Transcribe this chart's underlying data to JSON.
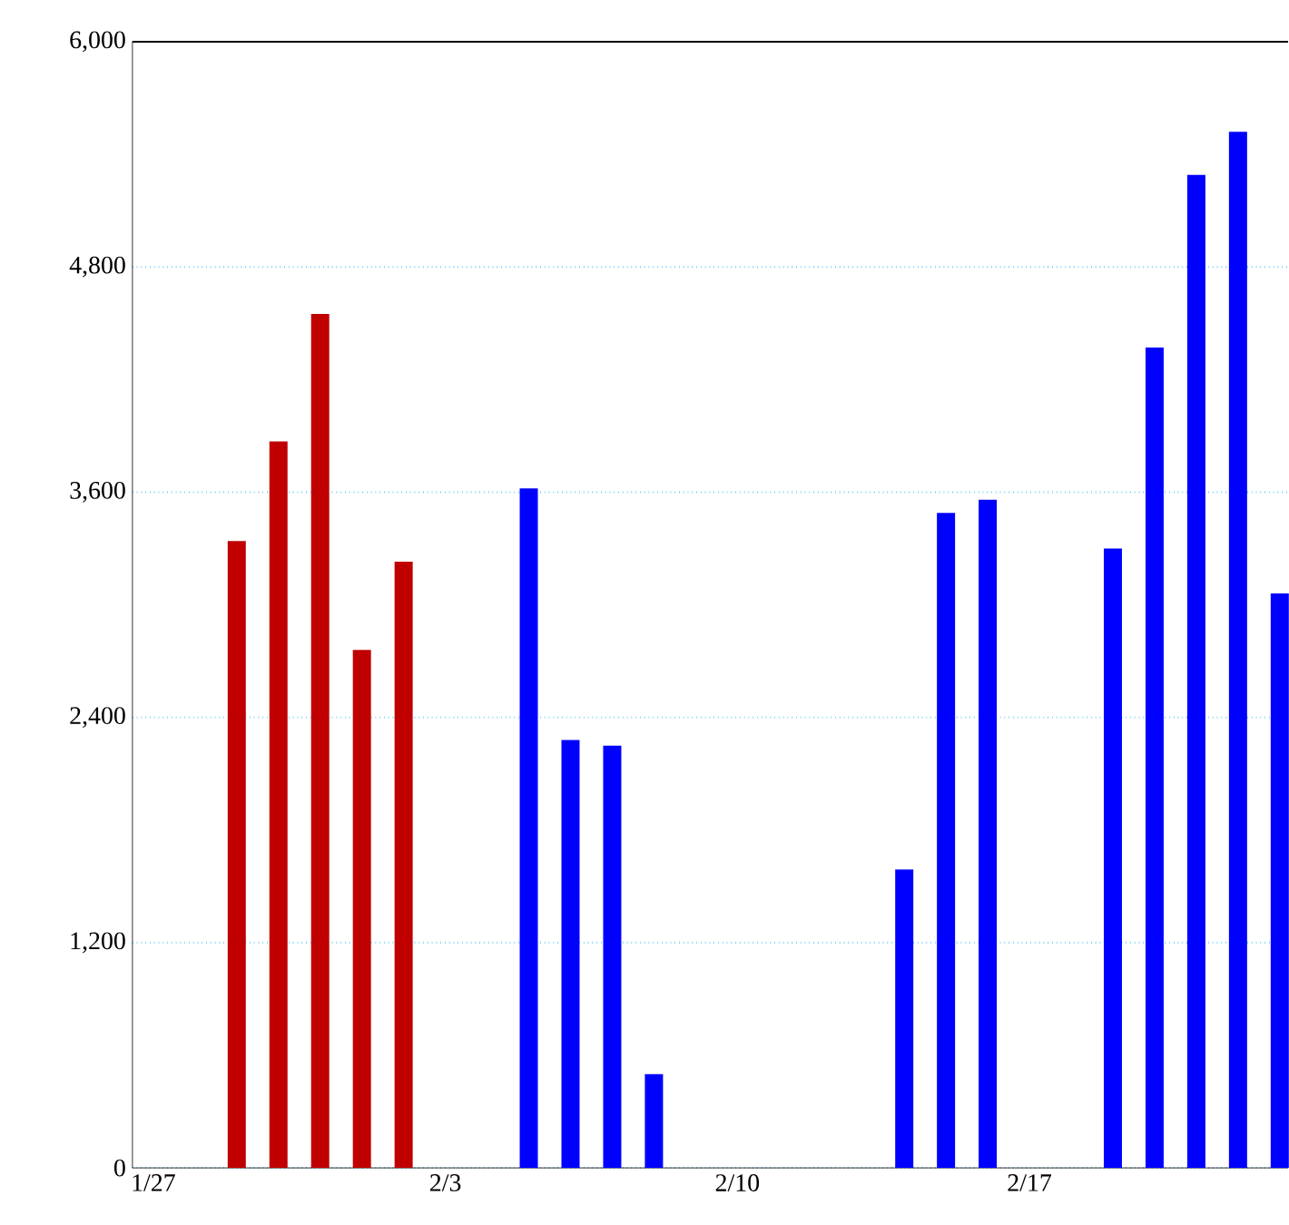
{
  "chart_data": {
    "type": "bar",
    "categories": [
      "1/27",
      null,
      null,
      null,
      null,
      null,
      null,
      "2/3",
      null,
      null,
      null,
      null,
      null,
      null,
      "2/10",
      null,
      null,
      null,
      null,
      null,
      null,
      "2/17",
      null,
      null,
      null,
      null,
      null,
      null
    ],
    "values": [
      null,
      null,
      3340,
      3870,
      4550,
      2760,
      3230,
      null,
      null,
      3620,
      2280,
      2250,
      500,
      null,
      null,
      null,
      null,
      null,
      1590,
      3490,
      3560,
      null,
      null,
      3300,
      4370,
      5290,
      5520,
      3060
    ],
    "colors": [
      "#c00000",
      "#c00000",
      "#c00000",
      "#c00000",
      "#c00000",
      "#c00000",
      "#c00000",
      "#c00000",
      "#c00000",
      "#0000ff",
      "#0000ff",
      "#0000ff",
      "#0000ff",
      "#0000ff",
      "#0000ff",
      "#0000ff",
      "#0000ff",
      "#0000ff",
      "#0000ff",
      "#0000ff",
      "#0000ff",
      "#0000ff",
      "#0000ff",
      "#0000ff",
      "#0000ff",
      "#0000ff",
      "#0000ff",
      "#0000ff"
    ],
    "ylim": [
      0,
      6000
    ],
    "yticks": [
      {
        "value": 0,
        "label": "0"
      },
      {
        "value": 1200,
        "label": "1,200"
      },
      {
        "value": 2400,
        "label": "2,400"
      },
      {
        "value": 3600,
        "label": "3,600"
      },
      {
        "value": 4800,
        "label": "4,800"
      },
      {
        "value": 6000,
        "label": "6,000"
      }
    ],
    "grid": "y"
  }
}
